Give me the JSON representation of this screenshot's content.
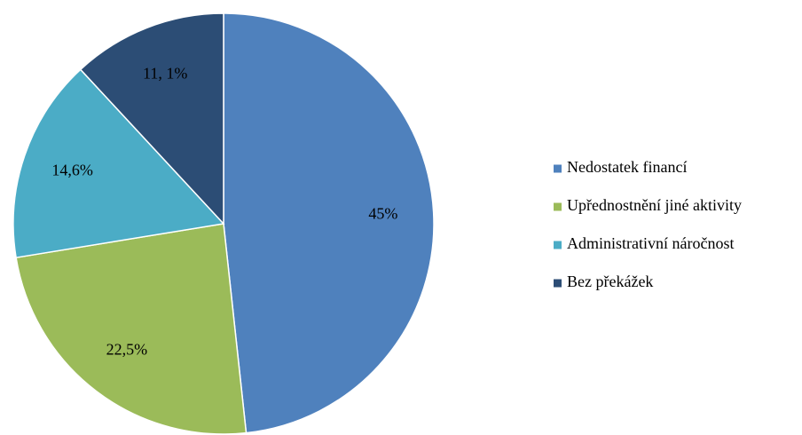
{
  "chart_data": {
    "type": "pie",
    "categories": [
      "Nedostatek financí",
      "Upřednostnění jiné aktivity",
      "Administrativní náročnost",
      "Bez překážek"
    ],
    "values": [
      45,
      22.5,
      14.6,
      11.1
    ],
    "value_labels": [
      "45%",
      "22,5%",
      "14,6%",
      "11, 1%"
    ],
    "colors": [
      "#4f81bd",
      "#9bbb59",
      "#4bacc6",
      "#2c4d75"
    ],
    "legend": "right"
  }
}
